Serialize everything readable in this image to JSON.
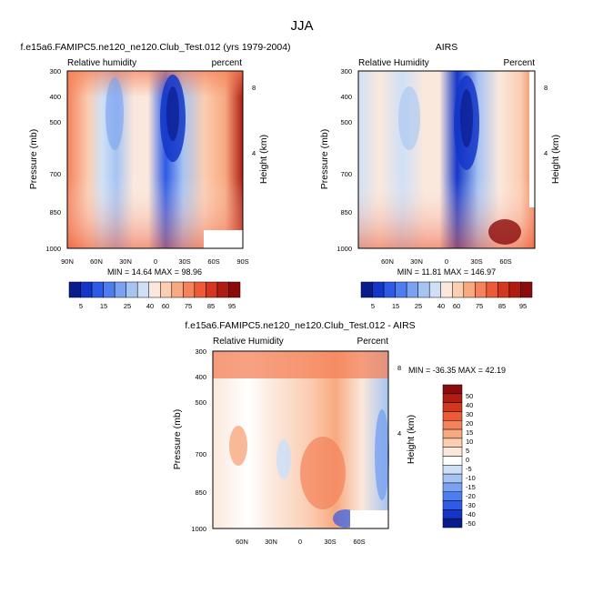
{
  "page": {
    "title": "JJA"
  },
  "colors": {
    "rh_scale": [
      "#0a1c8c",
      "#1436c8",
      "#2d5ae6",
      "#4d7df0",
      "#7aa2f0",
      "#a6c4f2",
      "#cfe0f6",
      "#fbe8dc",
      "#fbcdb2",
      "#f8a980",
      "#f4825a",
      "#ec5a37",
      "#d4371f",
      "#b01c12",
      "#8a0b0b"
    ],
    "diff_scale": [
      "#0a1c8c",
      "#1436c8",
      "#2d5ae6",
      "#4d7df0",
      "#7aa2f0",
      "#a6c4f2",
      "#cfe0f6",
      "#ffffff",
      "#fbe8dc",
      "#fbcdb2",
      "#f8a980",
      "#f4825a",
      "#ec5a37",
      "#d4371f",
      "#b01c12",
      "#8a0b0b"
    ]
  },
  "chart_data": [
    {
      "type": "heatmap",
      "title": "f.e15a6.FAMIPC5.ne120_ne120.Club_Test.012 (yrs 1979-2004)",
      "left_label": "Relative humidity",
      "right_label": "percent",
      "ylabel": "Pressure (mb)",
      "ylabel_right": "Height (km)",
      "x_ticks": [
        "90N",
        "60N",
        "30N",
        "0",
        "30S",
        "60S",
        "90S"
      ],
      "y_ticks": [
        "300",
        "400",
        "500",
        "700",
        "850",
        "1000"
      ],
      "y_right_ticks": [
        "8",
        "4"
      ],
      "stats": "MIN = 14.64  MAX = 98.96",
      "colorbar_labels": [
        "5",
        "15",
        "25",
        "40",
        "60",
        "75",
        "85",
        "95"
      ]
    },
    {
      "type": "heatmap",
      "title": "AIRS",
      "left_label": "Relative Humidity",
      "right_label": "Percent",
      "ylabel": "Pressure (mb)",
      "ylabel_right": "Height (km)",
      "x_ticks": [
        "60N",
        "30N",
        "0",
        "30S",
        "60S"
      ],
      "y_ticks": [
        "300",
        "400",
        "500",
        "700",
        "850",
        "1000"
      ],
      "y_right_ticks": [
        "8",
        "4"
      ],
      "stats": "MIN = 11.81  MAX = 146.97",
      "colorbar_labels": [
        "5",
        "15",
        "25",
        "40",
        "60",
        "75",
        "85",
        "95"
      ]
    },
    {
      "type": "heatmap",
      "title": "f.e15a6.FAMIPC5.ne120_ne120.Club_Test.012 - AIRS",
      "left_label": "Relative Humidity",
      "right_label": "Percent",
      "ylabel": "Pressure (mb)",
      "ylabel_right": "Height (km)",
      "x_ticks": [
        "60N",
        "30N",
        "0",
        "30S",
        "60S"
      ],
      "y_ticks": [
        "300",
        "400",
        "500",
        "700",
        "850",
        "1000"
      ],
      "y_right_ticks": [
        "8",
        "4"
      ],
      "stats": "MIN = -36.35  MAX =  42.19",
      "colorbar_labels": [
        "50",
        "40",
        "30",
        "20",
        "15",
        "10",
        "5",
        "0",
        "-5",
        "-10",
        "-15",
        "-20",
        "-30",
        "-40",
        "-50"
      ]
    }
  ]
}
